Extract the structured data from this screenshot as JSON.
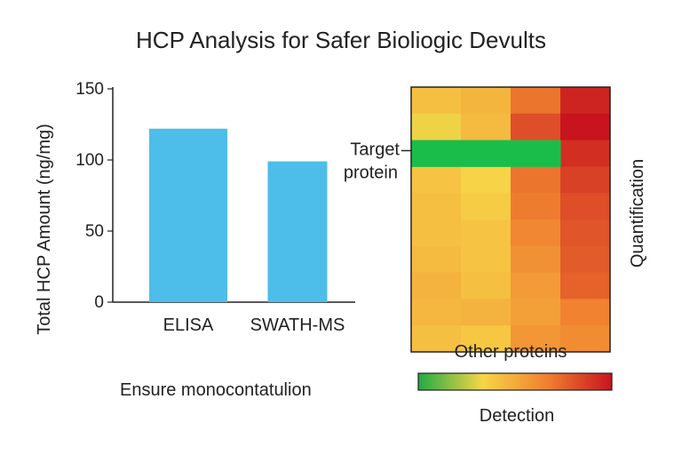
{
  "title": "HCP Analysis for Safer Bioliogic Devults",
  "chart_data": [
    {
      "type": "bar",
      "categories": [
        "ELISA",
        "SWATH-MS"
      ],
      "values": [
        122,
        99
      ],
      "ylabel": "Total HCP Amount (ng/mg)",
      "xlabel": "",
      "ylim": [
        0,
        150
      ],
      "yticks": [
        0,
        50,
        100,
        150
      ],
      "bar_color": "#4dbde9",
      "caption": "Ensure monocontatulion"
    },
    {
      "type": "heatmap",
      "rows": 10,
      "cols": 4,
      "values": [
        [
          0.42,
          0.46,
          0.7,
          0.95
        ],
        [
          0.32,
          0.44,
          0.82,
          1.0
        ],
        [
          0.0,
          0.0,
          0.0,
          0.92
        ],
        [
          0.4,
          0.34,
          0.7,
          0.86
        ],
        [
          0.42,
          0.37,
          0.68,
          0.82
        ],
        [
          0.42,
          0.4,
          0.64,
          0.8
        ],
        [
          0.44,
          0.4,
          0.6,
          0.78
        ],
        [
          0.47,
          0.42,
          0.56,
          0.76
        ],
        [
          0.45,
          0.47,
          0.54,
          0.66
        ],
        [
          0.42,
          0.39,
          0.58,
          0.62
        ]
      ],
      "xlabel": "Other proteins",
      "ylabel": "Quantification",
      "annotation": "Target protein",
      "annotation_lines": [
        "Target",
        "protein"
      ],
      "annotation_row": 2,
      "colorbar_label": "Detection",
      "colormap": [
        "#22aa44",
        "#f7d547",
        "#f08030",
        "#c8141e"
      ],
      "highlight_color": "#1bbd4a"
    }
  ]
}
